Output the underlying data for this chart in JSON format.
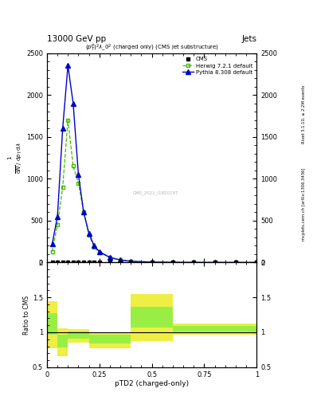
{
  "title_top_left": "13000 GeV pp",
  "title_top_right": "Jets",
  "plot_title": "$(p_T^P)^2\\lambda\\_0^2$ (charged only) (CMS jet substructure)",
  "watermark": "CMS_2021_I1920187",
  "ylabel_ratio": "Ratio to CMS",
  "xlabel": "pTD2 (charged-only)",
  "right_label1": "Rivet 3.1.10, ≥ 2.2M events",
  "right_label2": "mcplots.cern.ch [arXiv:1306.3436]",
  "herwig_x": [
    0.025,
    0.05,
    0.075,
    0.1,
    0.125,
    0.15,
    0.175,
    0.2,
    0.225,
    0.25,
    0.3,
    0.35,
    0.4,
    0.5,
    0.6,
    0.7,
    0.8,
    0.9,
    1.0
  ],
  "herwig_y": [
    130,
    450,
    900,
    1700,
    1150,
    950,
    600,
    330,
    180,
    120,
    60,
    30,
    15,
    5,
    2,
    1,
    0.5,
    0.2,
    0.1
  ],
  "pythia_x": [
    0.025,
    0.05,
    0.075,
    0.1,
    0.125,
    0.15,
    0.175,
    0.2,
    0.225,
    0.25,
    0.3,
    0.35,
    0.4,
    0.5,
    0.6,
    0.7,
    0.8,
    0.9,
    1.0
  ],
  "pythia_y": [
    220,
    550,
    1600,
    2350,
    1900,
    1050,
    600,
    350,
    200,
    130,
    60,
    30,
    15,
    5,
    2,
    1,
    0.5,
    0.2,
    0.1
  ],
  "cms_x": [
    0.025,
    0.05,
    0.075,
    0.1,
    0.125,
    0.15,
    0.175,
    0.2,
    0.225,
    0.25,
    0.3,
    0.35,
    0.4,
    0.5,
    0.6,
    0.7,
    0.8,
    0.9,
    1.0
  ],
  "cms_y": [
    0,
    0,
    0,
    0,
    0,
    0,
    0,
    0,
    0,
    0,
    0,
    0,
    0,
    0,
    0,
    0,
    0,
    0,
    0
  ],
  "ylim_main": [
    0,
    2500
  ],
  "ylim_ratio": [
    0.5,
    2.0
  ],
  "xlim": [
    0.0,
    1.0
  ],
  "yticks_main": [
    0,
    500,
    1000,
    1500,
    2000,
    2500
  ],
  "cms_color": "#000000",
  "herwig_color": "#44bb00",
  "pythia_color": "#0000cc",
  "band_inner_color": "#99ee44",
  "band_outer_color": "#eeee44",
  "ratio_x_edges": [
    0.0,
    0.05,
    0.1,
    0.2,
    0.4,
    0.6,
    0.8,
    1.0
  ],
  "ratio_y_centers": [
    1.15,
    0.88,
    0.97,
    0.92,
    1.25,
    1.05,
    1.05
  ],
  "ratio_outer_up": [
    0.3,
    0.18,
    0.08,
    0.08,
    0.3,
    0.08,
    0.08
  ],
  "ratio_outer_dn": [
    0.38,
    0.22,
    0.12,
    0.15,
    0.38,
    0.08,
    0.08
  ],
  "ratio_inner_up": [
    0.12,
    0.08,
    0.04,
    0.04,
    0.12,
    0.04,
    0.04
  ],
  "ratio_inner_dn": [
    0.18,
    0.1,
    0.06,
    0.08,
    0.18,
    0.04,
    0.04
  ]
}
